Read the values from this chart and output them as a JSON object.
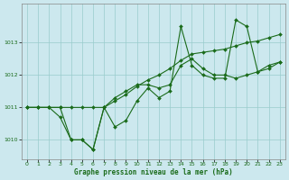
{
  "x": [
    0,
    1,
    2,
    3,
    4,
    5,
    6,
    7,
    8,
    9,
    10,
    11,
    12,
    13,
    14,
    15,
    16,
    17,
    18,
    19,
    20,
    21,
    22,
    23
  ],
  "line1": [
    1011.0,
    1011.0,
    1011.0,
    1010.7,
    1010.0,
    1010.0,
    1009.7,
    1011.0,
    1010.4,
    1010.6,
    1011.2,
    1011.6,
    1011.3,
    1011.5,
    1013.5,
    1012.3,
    1012.0,
    1011.9,
    1011.9,
    1013.7,
    1013.5,
    1012.1,
    1012.2,
    1012.4
  ],
  "line2": [
    1011.0,
    1011.0,
    1011.0,
    1011.0,
    1010.0,
    1010.0,
    1009.7,
    1011.0,
    1011.3,
    1011.5,
    1011.7,
    1011.7,
    1011.6,
    1011.7,
    1012.3,
    1012.5,
    1012.2,
    1012.0,
    1012.0,
    1011.9,
    1012.0,
    1012.1,
    1012.3,
    1012.4
  ],
  "line3": [
    1011.0,
    1011.0,
    1011.0,
    1011.0,
    1011.0,
    1011.0,
    1011.0,
    1011.0,
    1011.2,
    1011.4,
    1011.65,
    1011.85,
    1012.0,
    1012.2,
    1012.45,
    1012.65,
    1012.7,
    1012.75,
    1012.8,
    1012.9,
    1013.0,
    1013.05,
    1013.15,
    1013.25
  ],
  "bg_color": "#cce8ee",
  "grid_color": "#99cccc",
  "line_color": "#1a6b1a",
  "xlabel": "Graphe pression niveau de la mer (hPa)",
  "ylim_min": 1009.4,
  "ylim_max": 1014.2,
  "yticks": [
    1010,
    1011,
    1012,
    1013
  ],
  "xticks": [
    0,
    1,
    2,
    3,
    4,
    5,
    6,
    7,
    8,
    9,
    10,
    11,
    12,
    13,
    14,
    15,
    16,
    17,
    18,
    19,
    20,
    21,
    22,
    23
  ],
  "marker": "D",
  "markersize": 2.0,
  "linewidth": 0.8
}
